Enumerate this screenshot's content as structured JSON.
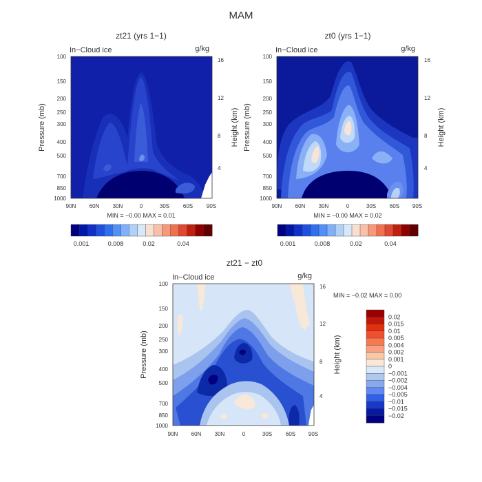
{
  "page_title": "MAM",
  "chart_data": [
    {
      "type": "heatmap",
      "title": "zt21 (yrs 1−1)",
      "left_label": "In−Cloud ice",
      "units": "g/kg",
      "xlabel": "",
      "ylabel": "Pressure (mb)",
      "y2label": "Height (km)",
      "x_ticks": [
        "90N",
        "60N",
        "30N",
        "0",
        "30S",
        "60S",
        "90S"
      ],
      "y_ticks": [
        "100",
        "150",
        "200",
        "250",
        "300",
        "400",
        "500",
        "700",
        "850",
        "1000"
      ],
      "y2_ticks": [
        "16",
        "12",
        "8",
        "4"
      ],
      "stats": "MIN = −0.00   MAX =   0.01",
      "colorbar_labels": [
        "0.001",
        "0.008",
        "0.02",
        "0.04"
      ],
      "palette": [
        "#000080",
        "#0018a8",
        "#1030c8",
        "#2050e0",
        "#3070f0",
        "#5090f8",
        "#80b0f8",
        "#b0d0f8",
        "#d8e8f8",
        "#f8e0d0",
        "#f8c0a8",
        "#f89878",
        "#f07050",
        "#e04830",
        "#c02010",
        "#900000",
        "#600000"
      ],
      "values_desc": "mostly near zero (deep blue) with moderate ice above the equator 150-500 mb"
    },
    {
      "type": "heatmap",
      "title": "zt0 (yrs 1−1)",
      "left_label": "In−Cloud ice",
      "units": "g/kg",
      "xlabel": "",
      "ylabel": "Pressure (mb)",
      "y2label": "Height (km)",
      "x_ticks": [
        "90N",
        "60N",
        "30N",
        "0",
        "30S",
        "60S",
        "90S"
      ],
      "y_ticks": [
        "100",
        "150",
        "200",
        "250",
        "300",
        "400",
        "500",
        "700",
        "850",
        "1000"
      ],
      "y2_ticks": [
        "16",
        "12",
        "8",
        "4"
      ],
      "stats": "MIN = −0.00   MAX =   0.02",
      "colorbar_labels": [
        "0.001",
        "0.008",
        "0.02",
        "0.04"
      ],
      "palette": [
        "#000080",
        "#0018a8",
        "#1030c8",
        "#2050e0",
        "#3070f0",
        "#5090f8",
        "#80b0f8",
        "#b0d0f8",
        "#d8e8f8",
        "#f8e0d0",
        "#f8c0a8",
        "#f89878",
        "#f07050",
        "#e04830",
        "#c02010",
        "#900000",
        "#600000"
      ],
      "values_desc": "maxima near the equator at 300 mb and near 35N at 400 mb"
    },
    {
      "type": "heatmap",
      "title": "zt21 − zt0",
      "left_label": "In−Cloud ice",
      "units": "g/kg",
      "xlabel": "",
      "ylabel": "Pressure (mb)",
      "y2label": "Height (km)",
      "x_ticks": [
        "90N",
        "60N",
        "30N",
        "0",
        "30S",
        "60S",
        "90S"
      ],
      "y_ticks": [
        "100",
        "150",
        "200",
        "250",
        "300",
        "400",
        "500",
        "700",
        "850",
        "1000"
      ],
      "y2_ticks": [
        "16",
        "12",
        "8",
        "4"
      ],
      "stats": "MIN =   −0.02   MAX =   0.00",
      "colorbar_labels": [
        "0.02",
        "0.015",
        "0.01",
        "0.005",
        "0.004",
        "0.002",
        "0.001",
        "0",
        "−0.001",
        "−0.002",
        "−0.004",
        "−0.005",
        "−0.01",
        "−0.015",
        "−0.02"
      ],
      "colorbar_colors": [
        "#9a0000",
        "#c01808",
        "#e03010",
        "#f05030",
        "#f87850",
        "#f8a080",
        "#f8c8a8",
        "#f8e8d8",
        "#d8e8f8",
        "#b0c8f0",
        "#88a8f0",
        "#6088f0",
        "#3060e8",
        "#1838c8",
        "#0818a0",
        "#000080"
      ],
      "values_desc": "negative differences, strongest (about −0.015) near the equator at 300 mb and near 40N at 400-500 mb"
    }
  ]
}
